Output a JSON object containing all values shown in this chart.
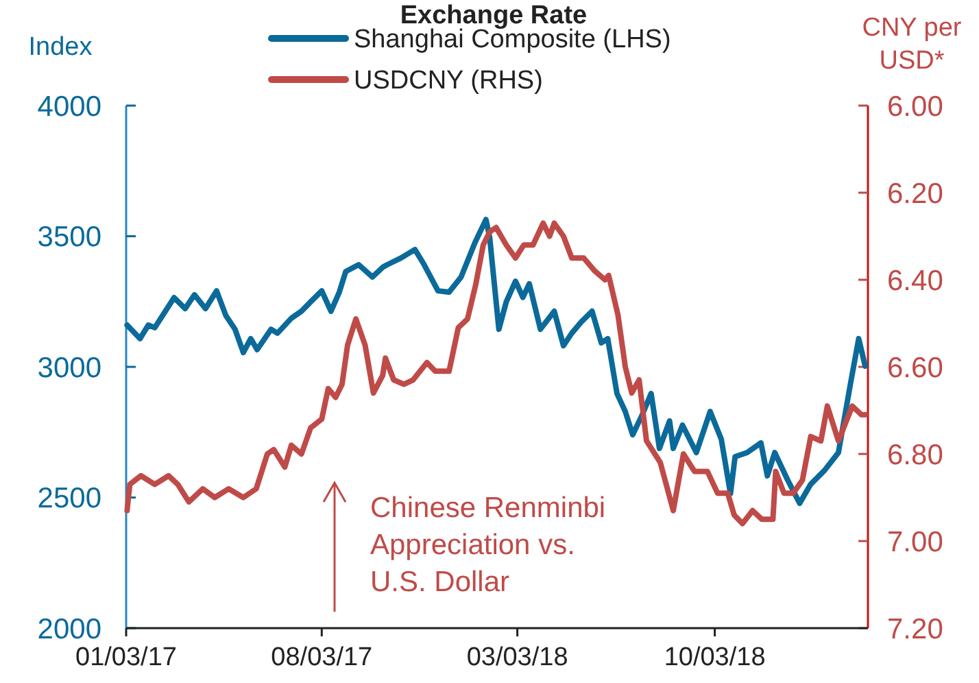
{
  "chart_data": {
    "type": "line",
    "title": "Exchange Rate",
    "ylabel": "Index",
    "y2label": "CNY per USD*",
    "xlim": [
      "2017-01-03",
      "2019-03-18"
    ],
    "xticks": [
      {
        "value": "2017-01-03",
        "label": "01/03/17"
      },
      {
        "value": "2017-08-03",
        "label": "08/03/17"
      },
      {
        "value": "2018-03-03",
        "label": "03/03/18"
      },
      {
        "value": "2018-10-03",
        "label": "10/03/18"
      }
    ],
    "ylim": [
      2000,
      4000
    ],
    "yticks": [
      2000,
      2500,
      3000,
      3500,
      4000
    ],
    "y2lim": [
      7.2,
      6.0
    ],
    "y2ticks": [
      {
        "value": 7.2,
        "label": "7.20"
      },
      {
        "value": 7.0,
        "label": "7.00"
      },
      {
        "value": 6.8,
        "label": "6.80"
      },
      {
        "value": 6.6,
        "label": "6.60"
      },
      {
        "value": 6.4,
        "label": "6.40"
      },
      {
        "value": 6.2,
        "label": "6.20"
      },
      {
        "value": 6.0,
        "label": "6.00"
      }
    ],
    "legend": "top",
    "grid": false,
    "annotations": [
      "Chinese Renminbi Appreciation vs. U.S. Dollar"
    ],
    "series": [
      {
        "name": "Shanghai Composite (LHS)",
        "color": "#0b6a9a",
        "x": [
          "2017-01-04",
          "2017-01-18",
          "2017-01-27",
          "2017-02-03",
          "2017-02-24",
          "2017-03-08",
          "2017-03-18",
          "2017-03-30",
          "2017-04-11",
          "2017-04-21",
          "2017-05-01",
          "2017-05-10",
          "2017-05-18",
          "2017-05-25",
          "2017-06-09",
          "2017-06-16",
          "2017-07-01",
          "2017-07-12",
          "2017-07-22",
          "2017-08-03",
          "2017-08-13",
          "2017-08-22",
          "2017-08-29",
          "2017-09-12",
          "2017-09-27",
          "2017-10-08",
          "2017-10-13",
          "2017-10-28",
          "2017-11-12",
          "2017-11-22",
          "2017-12-07",
          "2017-12-19",
          "2018-01-01",
          "2018-01-16",
          "2018-01-28",
          "2018-02-01",
          "2018-02-11",
          "2018-02-19",
          "2018-03-01",
          "2018-03-09",
          "2018-03-16",
          "2018-03-28",
          "2018-04-12",
          "2018-04-22",
          "2018-05-01",
          "2018-05-11",
          "2018-05-23",
          "2018-06-02",
          "2018-06-09",
          "2018-06-19",
          "2018-06-28",
          "2018-07-06",
          "2018-07-16",
          "2018-07-26",
          "2018-08-04",
          "2018-08-15",
          "2018-08-19",
          "2018-08-29",
          "2018-09-13",
          "2018-09-28",
          "2018-10-10",
          "2018-10-20",
          "2018-10-25",
          "2018-11-07",
          "2018-11-22",
          "2018-11-29",
          "2018-12-07",
          "2018-12-21",
          "2019-01-03",
          "2019-01-15",
          "2019-01-30",
          "2019-02-14",
          "2019-02-27",
          "2019-03-08",
          "2019-03-15"
        ],
        "values": [
          3160,
          3108,
          3160,
          3150,
          3265,
          3223,
          3276,
          3223,
          3291,
          3197,
          3144,
          3055,
          3108,
          3066,
          3144,
          3129,
          3186,
          3213,
          3249,
          3291,
          3213,
          3286,
          3365,
          3391,
          3344,
          3381,
          3391,
          3417,
          3449,
          3391,
          3291,
          3286,
          3344,
          3475,
          3564,
          3496,
          3144,
          3249,
          3328,
          3266,
          3318,
          3144,
          3213,
          3081,
          3129,
          3171,
          3213,
          3092,
          3108,
          2898,
          2829,
          2740,
          2814,
          2898,
          2688,
          2793,
          2688,
          2777,
          2672,
          2829,
          2724,
          2515,
          2656,
          2672,
          2709,
          2583,
          2672,
          2567,
          2478,
          2551,
          2604,
          2672,
          2934,
          3108,
          3003
        ]
      },
      {
        "name": "USDCNY (RHS)",
        "color": "#bf4b48",
        "axis": "y2",
        "x": [
          "2017-01-04",
          "2017-01-07",
          "2017-01-19",
          "2017-02-03",
          "2017-02-18",
          "2017-02-28",
          "2017-03-12",
          "2017-03-27",
          "2017-04-09",
          "2017-04-24",
          "2017-05-10",
          "2017-05-24",
          "2017-06-05",
          "2017-06-12",
          "2017-06-24",
          "2017-07-01",
          "2017-07-12",
          "2017-07-22",
          "2017-08-03",
          "2017-08-10",
          "2017-08-18",
          "2017-08-25",
          "2017-08-31",
          "2017-09-09",
          "2017-09-19",
          "2017-09-28",
          "2017-10-08",
          "2017-10-11",
          "2017-10-20",
          "2017-10-31",
          "2017-11-10",
          "2017-11-25",
          "2017-12-04",
          "2017-12-19",
          "2017-12-29",
          "2018-01-08",
          "2018-01-17",
          "2018-01-25",
          "2018-02-01",
          "2018-02-08",
          "2018-02-19",
          "2018-03-01",
          "2018-03-10",
          "2018-03-20",
          "2018-03-31",
          "2018-04-07",
          "2018-04-12",
          "2018-04-22",
          "2018-05-01",
          "2018-05-14",
          "2018-05-26",
          "2018-06-06",
          "2018-06-10",
          "2018-06-20",
          "2018-06-28",
          "2018-07-05",
          "2018-07-13",
          "2018-07-21",
          "2018-08-05",
          "2018-08-19",
          "2018-08-30",
          "2018-09-11",
          "2018-09-25",
          "2018-10-06",
          "2018-10-17",
          "2018-10-24",
          "2018-11-02",
          "2018-11-13",
          "2018-11-23",
          "2018-12-05",
          "2018-12-08",
          "2018-12-17",
          "2018-12-27",
          "2019-01-06",
          "2019-01-15",
          "2019-01-26",
          "2019-02-02",
          "2019-02-14",
          "2019-03-01",
          "2019-03-11",
          "2019-03-15"
        ],
        "values": [
          6.93,
          6.87,
          6.85,
          6.87,
          6.85,
          6.87,
          6.91,
          6.88,
          6.9,
          6.88,
          6.9,
          6.88,
          6.8,
          6.79,
          6.83,
          6.78,
          6.8,
          6.74,
          6.72,
          6.65,
          6.67,
          6.64,
          6.55,
          6.49,
          6.55,
          6.66,
          6.62,
          6.58,
          6.63,
          6.64,
          6.63,
          6.59,
          6.61,
          6.61,
          6.51,
          6.49,
          6.41,
          6.32,
          6.29,
          6.28,
          6.32,
          6.35,
          6.32,
          6.32,
          6.27,
          6.3,
          6.27,
          6.3,
          6.35,
          6.35,
          6.38,
          6.4,
          6.39,
          6.48,
          6.6,
          6.66,
          6.63,
          6.77,
          6.82,
          6.93,
          6.8,
          6.84,
          6.84,
          6.89,
          6.89,
          6.94,
          6.96,
          6.93,
          6.95,
          6.95,
          6.84,
          6.89,
          6.89,
          6.86,
          6.76,
          6.77,
          6.69,
          6.77,
          6.69,
          6.71,
          6.71
        ]
      }
    ]
  }
}
